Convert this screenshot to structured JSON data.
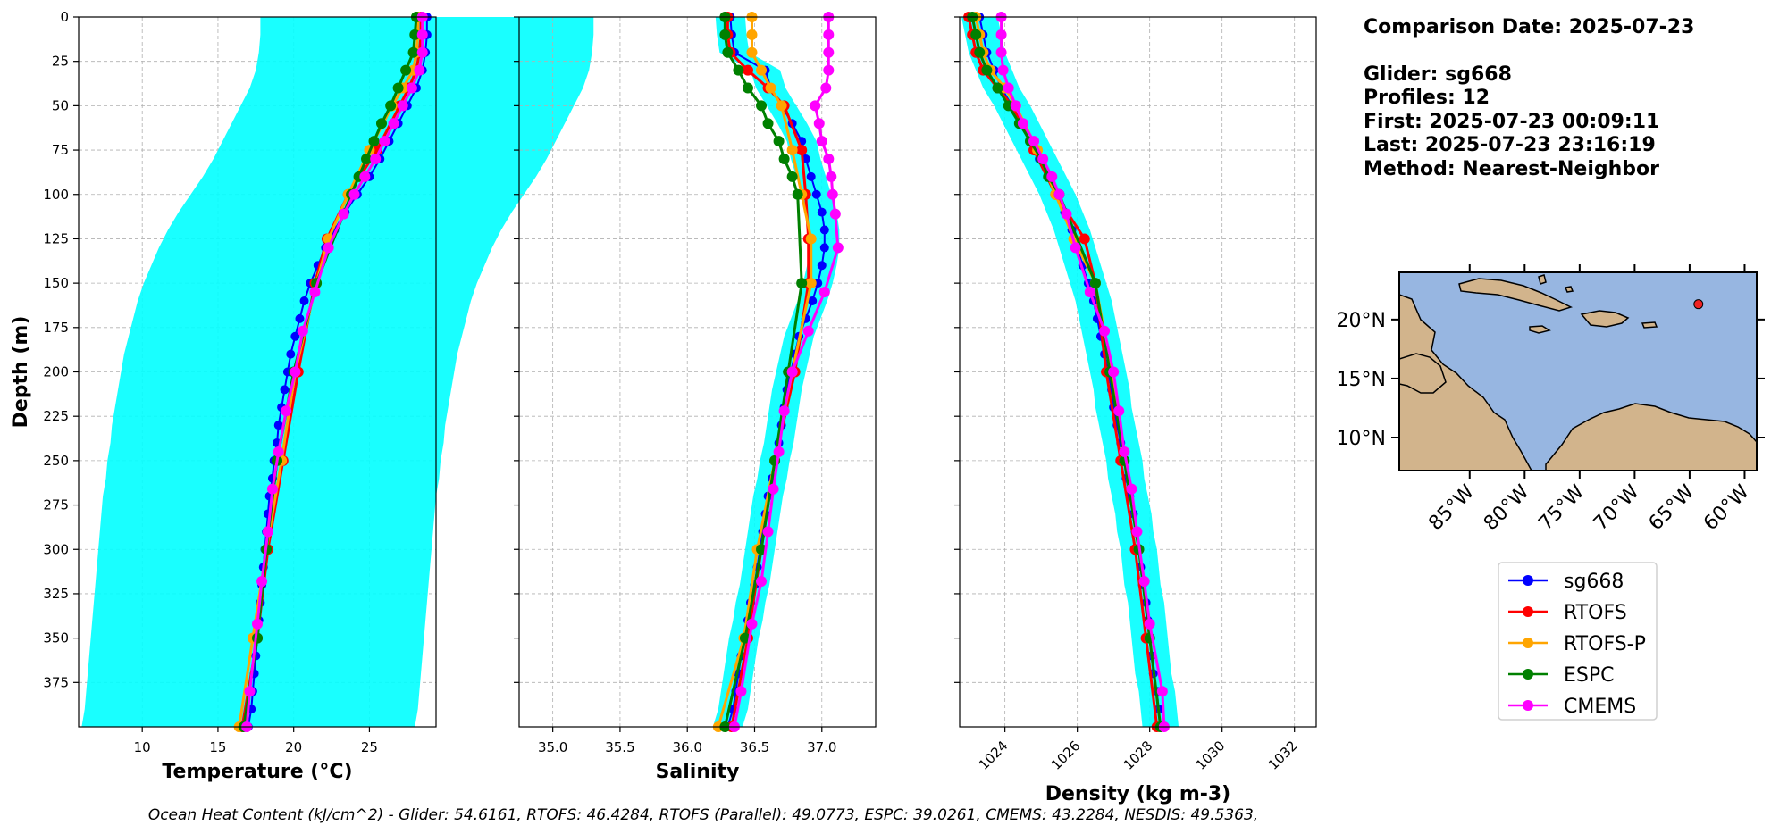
{
  "info": {
    "comparison_date": "Comparison Date: 2025-07-23",
    "glider": "Glider: sg668",
    "profiles": "Profiles: 12",
    "first": "First: 2025-07-23 00:09:11",
    "last": "Last: 2025-07-23 23:16:19",
    "method": "Method: Nearest-Neighbor"
  },
  "footer": "Ocean Heat Content (kJ/cm^2) - Glider: 54.6161,  RTOFS: 46.4284,  RTOFS (Parallel): 49.0773,  ESPC: 39.0261,  CMEMS: 43.2284,  NESDIS: 49.5363,",
  "colors": {
    "sg668": "#0000ff",
    "RTOFS": "#ff0000",
    "RTOFS-P": "#ffa500",
    "ESPC": "#008000",
    "CMEMS": "#ff00ff",
    "spread": "#00ffff",
    "ocean": "#97b6e1",
    "land": "#d2b48c"
  },
  "legend": [
    "sg668",
    "RTOFS",
    "RTOFS-P",
    "ESPC",
    "CMEMS"
  ],
  "map": {
    "lon_ticks": [
      "85°W",
      "80°W",
      "75°W",
      "70°W",
      "65°W",
      "60°W"
    ],
    "lat_ticks": [
      "20°N",
      "15°N",
      "10°N"
    ],
    "glider_lon": -64.2,
    "glider_lat": 21.3
  },
  "chart_data": [
    {
      "type": "line",
      "xlabel": "Temperature (°C)",
      "ylabel": "Depth (m)",
      "xlim": [
        5.8,
        29.4
      ],
      "ylim": [
        400,
        0
      ],
      "xticks": [
        10,
        15,
        20,
        25
      ],
      "yticks": [
        0,
        25,
        50,
        75,
        100,
        125,
        150,
        175,
        200,
        225,
        250,
        275,
        300,
        325,
        350,
        375
      ],
      "grid": true,
      "series": [
        {
          "name": "sg668",
          "depth": [
            0,
            10,
            20,
            30,
            40,
            50,
            60,
            70,
            80,
            90,
            100,
            110,
            120,
            130,
            140,
            150,
            160,
            170,
            180,
            190,
            200,
            210,
            220,
            230,
            240,
            250,
            260,
            270,
            280,
            290,
            300,
            310,
            320,
            330,
            340,
            350,
            360,
            370,
            380,
            390,
            400
          ],
          "values": [
            28.8,
            28.8,
            28.7,
            28.5,
            28.1,
            27.5,
            26.9,
            26.3,
            25.7,
            25.0,
            24.2,
            23.4,
            22.7,
            22.1,
            21.6,
            21.1,
            20.7,
            20.4,
            20.1,
            19.8,
            19.6,
            19.4,
            19.2,
            19.0,
            18.9,
            18.7,
            18.6,
            18.4,
            18.3,
            18.2,
            18.1,
            18.0,
            17.9,
            17.8,
            17.7,
            17.6,
            17.5,
            17.4,
            17.3,
            17.2,
            17.0
          ]
        },
        {
          "name": "RTOFS",
          "depth": [
            0,
            10,
            20,
            30,
            40,
            50,
            75,
            100,
            125,
            150,
            200,
            250,
            300,
            350,
            400
          ],
          "values": [
            28.4,
            28.4,
            28.3,
            28.1,
            27.6,
            27.0,
            25.5,
            23.6,
            22.2,
            21.4,
            20.3,
            19.3,
            18.3,
            17.6,
            16.6
          ]
        },
        {
          "name": "RTOFS-P",
          "depth": [
            0,
            10,
            20,
            30,
            40,
            50,
            75,
            100,
            125,
            150,
            200,
            250,
            300,
            350,
            400
          ],
          "values": [
            28.2,
            28.2,
            28.1,
            27.9,
            27.2,
            26.5,
            25.0,
            23.6,
            22.3,
            21.5,
            20.1,
            19.2,
            18.2,
            17.3,
            16.4
          ]
        },
        {
          "name": "ESPC",
          "depth": [
            0,
            10,
            20,
            30,
            40,
            50,
            60,
            70,
            80,
            90,
            100,
            150,
            200,
            250,
            300,
            350,
            400
          ],
          "values": [
            28.1,
            28.0,
            27.9,
            27.4,
            26.9,
            26.4,
            25.8,
            25.3,
            24.8,
            24.3,
            23.8,
            21.5,
            20.0,
            18.9,
            18.2,
            17.6,
            16.7
          ]
        },
        {
          "name": "CMEMS",
          "depth": [
            0,
            10,
            20,
            30,
            40,
            50,
            60,
            70,
            80,
            90,
            100,
            111,
            130,
            155,
            177,
            200,
            222,
            245,
            266,
            290,
            318,
            342,
            380,
            400
          ],
          "values": [
            28.5,
            28.5,
            28.5,
            28.3,
            27.8,
            27.2,
            26.6,
            26.0,
            25.4,
            24.7,
            24.0,
            23.3,
            22.3,
            21.4,
            20.6,
            20.1,
            19.5,
            19.0,
            18.6,
            18.3,
            17.9,
            17.6,
            17.1,
            16.9
          ]
        }
      ]
    },
    {
      "type": "line",
      "xlabel": "Salinity",
      "xlim": [
        34.75,
        37.4
      ],
      "ylim": [
        400,
        0
      ],
      "xticks": [
        "35.0",
        "35.5",
        "36.0",
        "36.5",
        "37.0"
      ],
      "yticks": [
        0,
        25,
        50,
        75,
        100,
        125,
        150,
        175,
        200,
        225,
        250,
        275,
        300,
        325,
        350,
        375
      ],
      "grid": true,
      "series": [
        {
          "name": "sg668",
          "depth": [
            0,
            10,
            20,
            30,
            40,
            50,
            60,
            70,
            80,
            90,
            100,
            110,
            120,
            130,
            140,
            150,
            160,
            170,
            180,
            190,
            200,
            210,
            220,
            230,
            240,
            250,
            260,
            270,
            280,
            290,
            300,
            310,
            320,
            330,
            340,
            350,
            360,
            370,
            380,
            390,
            400
          ],
          "values": [
            36.32,
            36.33,
            36.35,
            36.58,
            36.62,
            36.7,
            36.78,
            36.85,
            36.88,
            36.92,
            36.96,
            37.0,
            37.02,
            37.02,
            37.0,
            36.97,
            36.93,
            36.88,
            36.83,
            36.8,
            36.77,
            36.74,
            36.72,
            36.7,
            36.68,
            36.65,
            36.63,
            36.6,
            36.58,
            36.56,
            36.54,
            36.52,
            36.5,
            36.47,
            36.45,
            36.42,
            36.4,
            36.38,
            36.36,
            36.34,
            36.3
          ]
        },
        {
          "name": "RTOFS",
          "depth": [
            0,
            10,
            20,
            30,
            40,
            50,
            75,
            100,
            125,
            150,
            200,
            250,
            300,
            350,
            400
          ],
          "values": [
            36.3,
            36.3,
            36.32,
            36.45,
            36.6,
            36.72,
            36.85,
            36.88,
            36.9,
            36.9,
            36.8,
            36.65,
            36.55,
            36.45,
            36.33
          ]
        },
        {
          "name": "RTOFS-P",
          "depth": [
            0,
            10,
            20,
            30,
            40,
            50,
            75,
            100,
            125,
            150,
            200,
            250,
            300,
            350,
            400
          ],
          "values": [
            36.48,
            36.48,
            36.48,
            36.55,
            36.62,
            36.7,
            36.78,
            36.85,
            36.92,
            36.92,
            36.78,
            36.65,
            36.52,
            36.42,
            36.23
          ]
        },
        {
          "name": "ESPC",
          "depth": [
            0,
            10,
            20,
            30,
            40,
            50,
            60,
            70,
            80,
            90,
            100,
            150,
            200,
            250,
            300,
            350,
            400
          ],
          "values": [
            36.28,
            36.28,
            36.3,
            36.38,
            36.45,
            36.55,
            36.6,
            36.68,
            36.72,
            36.78,
            36.82,
            36.85,
            36.75,
            36.65,
            36.55,
            36.43,
            36.28
          ]
        },
        {
          "name": "CMEMS",
          "depth": [
            0,
            10,
            20,
            30,
            40,
            50,
            60,
            70,
            80,
            90,
            100,
            111,
            130,
            155,
            177,
            200,
            222,
            245,
            266,
            290,
            318,
            342,
            380,
            400
          ],
          "values": [
            37.05,
            37.05,
            37.05,
            37.05,
            37.03,
            36.95,
            36.98,
            37.0,
            37.05,
            37.07,
            37.08,
            37.1,
            37.12,
            37.02,
            36.9,
            36.78,
            36.72,
            36.68,
            36.64,
            36.6,
            36.55,
            36.48,
            36.4,
            36.35
          ]
        }
      ]
    },
    {
      "type": "line",
      "xlabel": "Density (kg m-3)",
      "xlim": [
        1022.75,
        1032.6
      ],
      "ylim": [
        400,
        0
      ],
      "xticks": [
        "1024",
        "1026",
        "1028",
        "1030",
        "1032"
      ],
      "yticks": [
        0,
        25,
        50,
        75,
        100,
        125,
        150,
        175,
        200,
        225,
        250,
        275,
        300,
        325,
        350,
        375
      ],
      "grid": true,
      "series": [
        {
          "name": "sg668",
          "depth": [
            0,
            10,
            20,
            30,
            40,
            50,
            60,
            70,
            80,
            90,
            100,
            110,
            120,
            130,
            140,
            150,
            160,
            170,
            180,
            190,
            200,
            210,
            220,
            230,
            240,
            250,
            260,
            270,
            280,
            290,
            300,
            310,
            320,
            330,
            340,
            350,
            360,
            370,
            380,
            390,
            400
          ],
          "values": [
            1023.3,
            1023.4,
            1023.5,
            1023.7,
            1023.9,
            1024.2,
            1024.45,
            1024.7,
            1024.95,
            1025.2,
            1025.45,
            1025.65,
            1025.85,
            1026.0,
            1026.15,
            1026.3,
            1026.45,
            1026.55,
            1026.65,
            1026.75,
            1026.85,
            1026.95,
            1027.0,
            1027.1,
            1027.2,
            1027.3,
            1027.35,
            1027.45,
            1027.55,
            1027.6,
            1027.7,
            1027.75,
            1027.8,
            1027.9,
            1027.95,
            1028.0,
            1028.05,
            1028.1,
            1028.2,
            1028.25,
            1028.3
          ]
        },
        {
          "name": "RTOFS",
          "depth": [
            0,
            10,
            20,
            30,
            40,
            50,
            75,
            100,
            125,
            150,
            200,
            250,
            300,
            350,
            400
          ],
          "values": [
            1023.0,
            1023.1,
            1023.2,
            1023.4,
            1023.8,
            1024.2,
            1024.8,
            1025.4,
            1026.2,
            1026.5,
            1026.8,
            1027.2,
            1027.6,
            1027.9,
            1028.2
          ]
        },
        {
          "name": "RTOFS-P",
          "depth": [
            0,
            10,
            20,
            30,
            40,
            50,
            75,
            100,
            125,
            150,
            200,
            250,
            300,
            350,
            400
          ],
          "values": [
            1023.2,
            1023.3,
            1023.4,
            1023.6,
            1024.0,
            1024.3,
            1024.9,
            1025.4,
            1025.9,
            1026.5,
            1026.95,
            1027.3,
            1027.7,
            1028.0,
            1028.3
          ]
        },
        {
          "name": "ESPC",
          "depth": [
            0,
            10,
            20,
            30,
            40,
            50,
            60,
            70,
            80,
            90,
            100,
            150,
            200,
            250,
            300,
            350,
            400
          ],
          "values": [
            1023.1,
            1023.2,
            1023.3,
            1023.5,
            1023.8,
            1024.1,
            1024.4,
            1024.7,
            1025.0,
            1025.2,
            1025.5,
            1026.5,
            1026.9,
            1027.3,
            1027.7,
            1028.0,
            1028.3
          ]
        },
        {
          "name": "CMEMS",
          "depth": [
            0,
            10,
            20,
            30,
            40,
            50,
            60,
            70,
            80,
            90,
            100,
            111,
            130,
            155,
            177,
            200,
            222,
            245,
            266,
            290,
            318,
            342,
            380,
            400
          ],
          "values": [
            1023.9,
            1023.9,
            1023.9,
            1023.95,
            1024.1,
            1024.3,
            1024.5,
            1024.8,
            1025.05,
            1025.3,
            1025.5,
            1025.7,
            1025.95,
            1026.35,
            1026.75,
            1027.0,
            1027.15,
            1027.3,
            1027.5,
            1027.65,
            1027.85,
            1028.0,
            1028.35,
            1028.4
          ]
        }
      ]
    }
  ]
}
